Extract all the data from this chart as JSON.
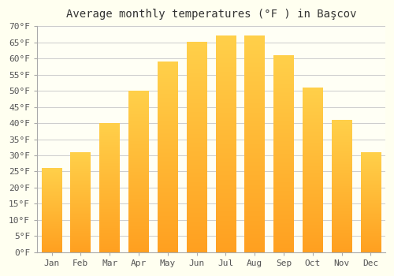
{
  "title": "Average monthly temperatures (°F ) in Başcov",
  "months": [
    "Jan",
    "Feb",
    "Mar",
    "Apr",
    "May",
    "Jun",
    "Jul",
    "Aug",
    "Sep",
    "Oct",
    "Nov",
    "Dec"
  ],
  "values": [
    26,
    31,
    40,
    50,
    59,
    65,
    67,
    67,
    61,
    51,
    41,
    31
  ],
  "ylim": [
    0,
    70
  ],
  "yticks": [
    0,
    5,
    10,
    15,
    20,
    25,
    30,
    35,
    40,
    45,
    50,
    55,
    60,
    65,
    70
  ],
  "ytick_labels": [
    "0°F",
    "5°F",
    "10°F",
    "15°F",
    "20°F",
    "25°F",
    "30°F",
    "35°F",
    "40°F",
    "45°F",
    "50°F",
    "55°F",
    "60°F",
    "65°F",
    "70°F"
  ],
  "background_color": "#fffff0",
  "plot_bg_color": "#fffff5",
  "grid_color": "#cccccc",
  "bar_color_light": "#FFD04A",
  "bar_color_dark": "#FFA020",
  "title_fontsize": 10,
  "tick_fontsize": 8,
  "bar_width": 0.7
}
